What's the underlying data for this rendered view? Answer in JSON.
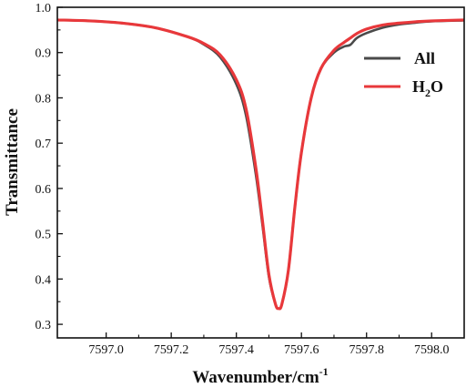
{
  "chart_data": {
    "type": "line",
    "title": "",
    "xlabel": "Wavenumber/cm",
    "xlabel_sup": "-1",
    "ylabel": "Transmittance",
    "xlim": [
      7596.85,
      7598.1
    ],
    "ylim": [
      0.27,
      1.0
    ],
    "xticks": [
      7597.0,
      7597.2,
      7597.4,
      7597.6,
      7597.8,
      7598.0
    ],
    "xtick_labels": [
      "7597.0",
      "7597.2",
      "7597.4",
      "7597.6",
      "7597.8",
      "7598.0"
    ],
    "yticks": [
      0.3,
      0.4,
      0.5,
      0.6,
      0.7,
      0.8,
      0.9,
      1.0
    ],
    "ytick_labels": [
      "0.3",
      "0.4",
      "0.5",
      "0.6",
      "0.7",
      "0.8",
      "0.9",
      "1.0"
    ],
    "grid": false,
    "legend_position": "top-right",
    "series": [
      {
        "name": "All",
        "color": "#4a4a4a",
        "x": [
          7596.85,
          7596.95,
          7597.05,
          7597.15,
          7597.25,
          7597.3,
          7597.35,
          7597.4,
          7597.43,
          7597.46,
          7597.48,
          7597.5,
          7597.52,
          7597.53,
          7597.54,
          7597.56,
          7597.58,
          7597.6,
          7597.63,
          7597.66,
          7597.7,
          7597.73,
          7597.75,
          7597.77,
          7597.8,
          7597.85,
          7597.9,
          7597.95,
          7598.0,
          7598.1
        ],
        "y": [
          0.972,
          0.97,
          0.965,
          0.955,
          0.935,
          0.918,
          0.89,
          0.83,
          0.76,
          0.63,
          0.52,
          0.405,
          0.345,
          0.335,
          0.345,
          0.42,
          0.56,
          0.68,
          0.8,
          0.865,
          0.9,
          0.913,
          0.917,
          0.932,
          0.943,
          0.955,
          0.962,
          0.966,
          0.969,
          0.971
        ]
      },
      {
        "name": "H",
        "name_sub": "2",
        "name_tail": "O",
        "color": "#e8383b",
        "x": [
          7596.85,
          7596.95,
          7597.05,
          7597.15,
          7597.25,
          7597.3,
          7597.35,
          7597.4,
          7597.43,
          7597.46,
          7597.48,
          7597.5,
          7597.52,
          7597.53,
          7597.54,
          7597.56,
          7597.58,
          7597.6,
          7597.63,
          7597.66,
          7597.7,
          7597.73,
          7597.75,
          7597.77,
          7597.8,
          7597.85,
          7597.9,
          7597.95,
          7598.0,
          7598.1
        ],
        "y": [
          0.972,
          0.97,
          0.965,
          0.955,
          0.935,
          0.92,
          0.895,
          0.84,
          0.775,
          0.645,
          0.53,
          0.41,
          0.345,
          0.335,
          0.345,
          0.42,
          0.56,
          0.68,
          0.8,
          0.865,
          0.905,
          0.922,
          0.932,
          0.942,
          0.952,
          0.961,
          0.965,
          0.968,
          0.97,
          0.972
        ]
      }
    ]
  }
}
